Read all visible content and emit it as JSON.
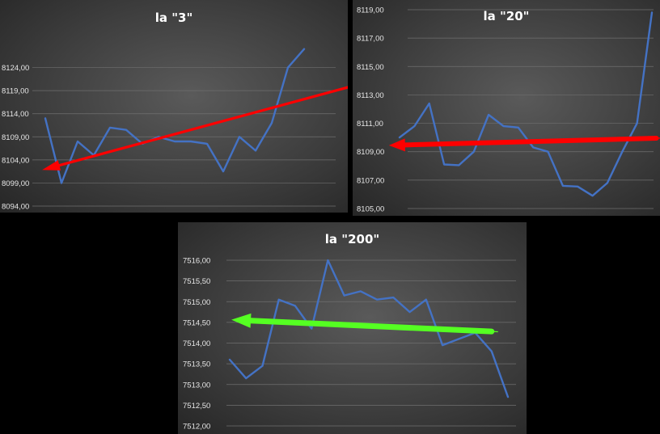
{
  "chart_data": [
    {
      "type": "line",
      "title": "la \"3\"",
      "ylim": [
        8094,
        8129
      ],
      "yticks": [
        8094,
        8099,
        8104,
        8109,
        8114,
        8119,
        8124
      ],
      "ytick_labels": [
        "8094,00",
        "8099,00",
        "8104,00",
        "8109,00",
        "8114,00",
        "8119,00",
        "8124,00"
      ],
      "grid": true,
      "series": [
        {
          "values": [
            8113,
            8099,
            8108,
            8105,
            8111,
            8110.5,
            8107.5,
            8109,
            8108,
            8108,
            8107.5,
            8101.5,
            8109,
            8106,
            8112,
            8124,
            8128
          ]
        }
      ],
      "annotation": {
        "type": "arrow",
        "color": "#ff0000",
        "direction": "left",
        "from": [
          19,
          8120
        ],
        "to": [
          0,
          8102
        ]
      }
    },
    {
      "type": "line",
      "title": "la \"20\"",
      "ylim": [
        8105,
        8119
      ],
      "yticks": [
        8105,
        8107,
        8109,
        8111,
        8113,
        8115,
        8117,
        8119
      ],
      "ytick_labels": [
        "8105,00",
        "8107,00",
        "8109,00",
        "8111,00",
        "8113,00",
        "8115,00",
        "8117,00",
        "8119,00"
      ],
      "grid": true,
      "series": [
        {
          "values": [
            8110,
            8110.8,
            8112.4,
            8108.1,
            8108.05,
            8109,
            8111.6,
            8110.8,
            8110.7,
            8109.3,
            8109,
            8106.6,
            8106.55,
            8105.9,
            8106.8,
            8109,
            8111,
            8118.8
          ]
        }
      ],
      "annotation": {
        "type": "arrow",
        "color": "#ff0000",
        "direction": "left",
        "from": [
          17.3,
          8109.95
        ],
        "to": [
          -0.5,
          8109.45
        ]
      }
    },
    {
      "type": "line",
      "title": "la \"200\"",
      "ylim": [
        7512,
        7516
      ],
      "yticks": [
        7512,
        7512.5,
        7513,
        7513.5,
        7514,
        7514.5,
        7515,
        7515.5,
        7516
      ],
      "ytick_labels": [
        "7512,00",
        "7512,50",
        "7513,00",
        "7513,50",
        "7514,00",
        "7514,50",
        "7515,00",
        "7515,50",
        "7516,00"
      ],
      "grid": true,
      "series": [
        {
          "values": [
            7513.6,
            7513.15,
            7513.45,
            7515.05,
            7514.9,
            7514.35,
            7516,
            7515.15,
            7515.25,
            7515.05,
            7515.1,
            7514.75,
            7515.05,
            7513.95,
            7514.1,
            7514.25,
            7513.8,
            7512.7
          ]
        }
      ],
      "annotation": {
        "type": "arrow",
        "color": "#55ff22",
        "direction": "left",
        "from": [
          16,
          7514.28
        ],
        "to": [
          0.3,
          7514.56
        ]
      }
    }
  ]
}
